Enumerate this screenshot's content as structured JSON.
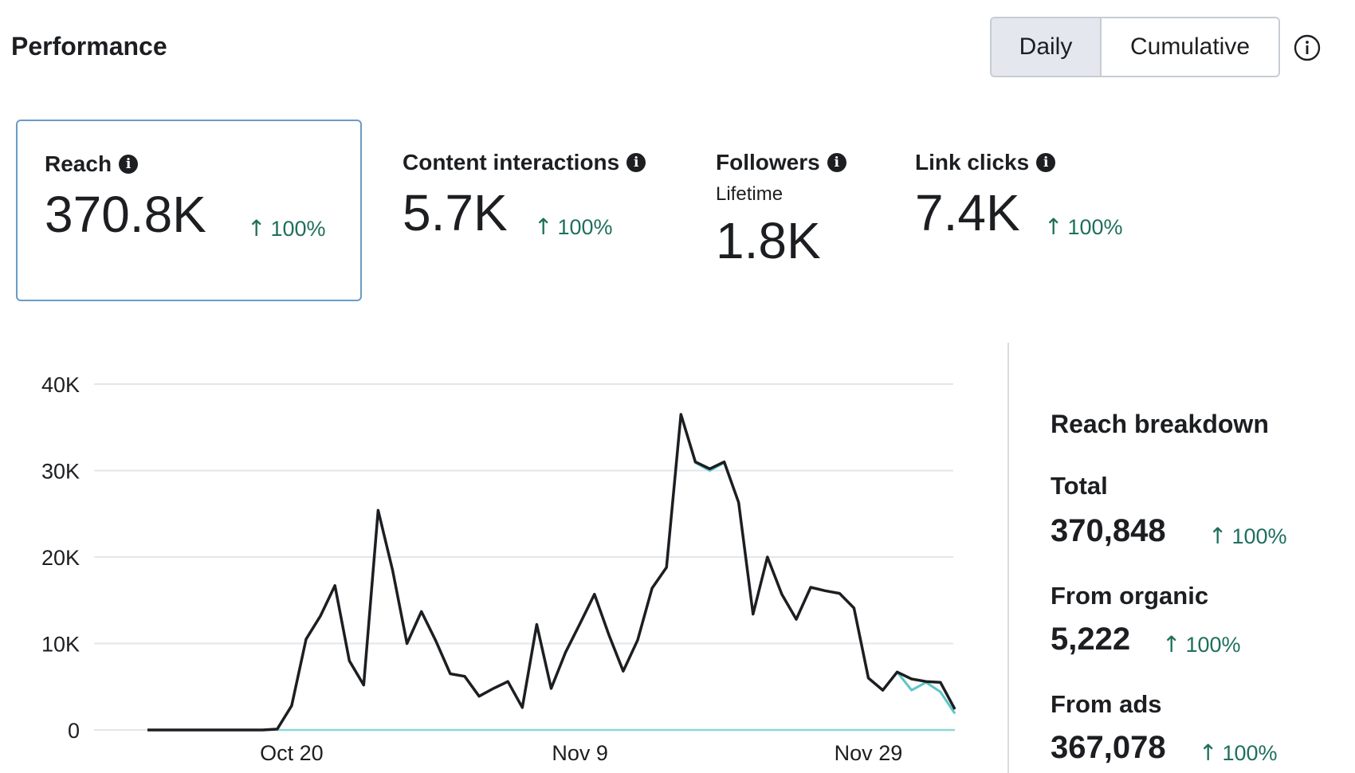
{
  "header": {
    "title": "Performance",
    "toggle": {
      "daily": "Daily",
      "cumulative": "Cumulative"
    }
  },
  "metrics": [
    {
      "label": "Reach",
      "value": "370.8K",
      "change": "100%",
      "selected": true
    },
    {
      "label": "Content interactions",
      "value": "5.7K",
      "change": "100%"
    },
    {
      "label": "Followers",
      "sublabel": "Lifetime",
      "value": "1.8K"
    },
    {
      "label": "Link clicks",
      "value": "7.4K",
      "change": "100%"
    }
  ],
  "breakdown": {
    "title": "Reach breakdown",
    "total": {
      "label": "Total",
      "value": "370,848",
      "change": "100%"
    },
    "organic": {
      "label": "From organic",
      "value": "5,222",
      "change": "100%"
    },
    "ads": {
      "label": "From ads",
      "value": "367,078",
      "change": "100%"
    }
  },
  "colors": {
    "accent_change": "#1f6f5c",
    "total_line": "#1c1e21",
    "series_line": "#5cc6c6",
    "selected_border": "#6a9bc6"
  },
  "chart_data": {
    "type": "line",
    "ylim": [
      0,
      40000
    ],
    "yticks": [
      "40K",
      "30K",
      "20K",
      "10K",
      "0"
    ],
    "ytick_values": [
      40000,
      30000,
      20000,
      10000,
      0
    ],
    "xticks": [
      {
        "label": "Oct 20",
        "index": 10
      },
      {
        "label": "Nov 9",
        "index": 30
      },
      {
        "label": "Nov 29",
        "index": 50
      }
    ],
    "num_points": 57,
    "series": [
      {
        "name": "Total",
        "values": [
          0,
          0,
          0,
          0,
          0,
          0,
          0,
          0,
          0,
          100,
          2800,
          10500,
          13200,
          16700,
          8000,
          5200,
          25400,
          18500,
          10000,
          13700,
          10300,
          6500,
          6200,
          3900,
          4800,
          5600,
          2600,
          12200,
          4800,
          9000,
          12300,
          15700,
          11000,
          6800,
          10400,
          16400,
          18800,
          36500,
          31000,
          30200,
          31000,
          26300,
          13400,
          20000,
          15700,
          12800,
          16500,
          16100,
          15800,
          14100,
          6000,
          4600,
          6700,
          5900,
          5600,
          5500,
          2400
        ]
      },
      {
        "name": "From organic",
        "values": [
          0,
          0,
          0,
          0,
          0,
          0,
          0,
          0,
          0,
          0,
          0,
          0,
          0,
          0,
          0,
          0,
          0,
          0,
          0,
          0,
          0,
          0,
          0,
          0,
          0,
          0,
          0,
          0,
          0,
          0,
          0,
          0,
          0,
          0,
          0,
          0,
          0,
          0,
          0,
          0,
          0,
          0,
          0,
          0,
          0,
          0,
          0,
          0,
          0,
          0,
          0,
          0,
          0,
          0,
          0,
          0,
          0
        ]
      },
      {
        "name": "From ads",
        "values": [
          0,
          0,
          0,
          0,
          0,
          0,
          0,
          0,
          0,
          100,
          2800,
          10500,
          13200,
          16700,
          8000,
          5200,
          25400,
          18500,
          10000,
          13700,
          10300,
          6500,
          6200,
          3900,
          4800,
          5600,
          2600,
          12200,
          4800,
          9000,
          12300,
          15700,
          11000,
          6800,
          10400,
          16400,
          18800,
          36500,
          30900,
          30000,
          30900,
          26300,
          13400,
          20000,
          15700,
          12800,
          16500,
          16100,
          15800,
          14100,
          6000,
          4600,
          6700,
          4600,
          5500,
          4400,
          1900
        ]
      }
    ]
  }
}
